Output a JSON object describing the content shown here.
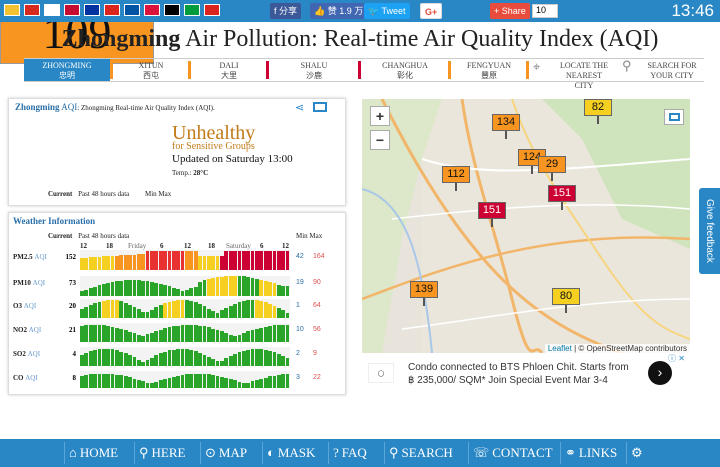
{
  "topbar": {
    "share_fb": "分享",
    "share_like": "赞 1.9 万",
    "tweet": "Tweet",
    "gplus": "G+",
    "share": "Share",
    "count": "10",
    "clock": "13:46",
    "flag_colors": [
      "#f2c230",
      "#d52b1e",
      "#ffffff",
      "#c60c30",
      "#0033a0",
      "#da251d",
      "#0055a4",
      "#dc143c",
      "#000000",
      "#009c3b",
      "#da251d"
    ]
  },
  "title": {
    "city": "Zhongming",
    "rest": " Air Pollution: Real-time Air Quality Index (AQI)"
  },
  "nav": {
    "tabs": [
      {
        "label": "Zhongming",
        "sub": "忠明",
        "sep_color": "#f79520"
      },
      {
        "label": "Xitun",
        "sub": "西屯",
        "sep_color": "#f79520"
      },
      {
        "label": "Dali",
        "sub": "大里",
        "sep_color": "#cc0033"
      },
      {
        "label": "Shalu",
        "sub": "沙鹿",
        "sep_color": "#cc0033"
      },
      {
        "label": "Changhua",
        "sub": "彰化",
        "sep_color": "#f79520"
      },
      {
        "label": "Fengyuan",
        "sub": "豐原",
        "sep_color": "#f79520"
      }
    ],
    "locate": "Locate the nearest city",
    "search": "Search for your city"
  },
  "aqi_panel": {
    "city": "Zhongming",
    "aqi_word": "AQI",
    "header_rest": ": Zhongming Real-time Air Quality Index (AQI).",
    "value": "109",
    "level": "Unhealthy",
    "level_sub": "for Sensitive Groups",
    "updated": "Updated on Saturday 13:00",
    "temp_label": "Temp.:",
    "temp_value": "28°C",
    "legend_current": "Current",
    "legend_past": "Past 48 hours data",
    "legend_minmax": "Min Max",
    "accent": "#f79520"
  },
  "weather_panel": {
    "title": "Weather Information",
    "header_current": "Current",
    "header_past": "Past 48 hours data",
    "header_minmax": "Min Max",
    "hours": [
      "12",
      "18",
      "Friday",
      "6",
      "12",
      "18",
      "Saturday",
      "6",
      "12"
    ],
    "rows": [
      {
        "name": "PM2.5",
        "unit": "AQI",
        "current": "152",
        "min": "42",
        "max": "164"
      },
      {
        "name": "PM10",
        "unit": "AQI",
        "current": "73",
        "min": "19",
        "max": "90"
      },
      {
        "name": "O3",
        "unit": "AQI",
        "current": "20",
        "min": "1",
        "max": "64"
      },
      {
        "name": "NO2",
        "unit": "AQI",
        "current": "21",
        "min": "10",
        "max": "56"
      },
      {
        "name": "SO2",
        "unit": "AQI",
        "current": "4",
        "min": "2",
        "max": "9"
      },
      {
        "name": "CO",
        "unit": "AQI",
        "current": "8",
        "min": "3",
        "max": "22"
      }
    ]
  },
  "map": {
    "zoom_in": "+",
    "zoom_out": "−",
    "markers": [
      {
        "value": "82",
        "color": "#f5d020"
      },
      {
        "value": "134",
        "color": "#f79520"
      },
      {
        "value": "124",
        "color": "#f79520"
      },
      {
        "value": "29",
        "color": "#f79520"
      },
      {
        "value": "112",
        "color": "#f79520"
      },
      {
        "value": "151",
        "color": "#cc0033"
      },
      {
        "value": "151",
        "color": "#cc0033"
      },
      {
        "value": "139",
        "color": "#f79520"
      },
      {
        "value": "80",
        "color": "#f5d020"
      }
    ],
    "attribution_leaflet": "Leaflet",
    "attribution_rest": " | © OpenStreetMap contributors"
  },
  "ad": {
    "line1": "Condo connected to BTS Phloen Chit. Starts from",
    "line2": "฿ 235,000/ SQM* Join Special Event Mar 3-4"
  },
  "feedback": "Give feedback",
  "bottom_nav": [
    {
      "label": "HOME"
    },
    {
      "label": "HERE"
    },
    {
      "label": "MAP"
    },
    {
      "label": "MASK"
    },
    {
      "label": "FAQ"
    },
    {
      "label": "SEARCH"
    },
    {
      "label": "CONTACT"
    },
    {
      "label": "LINKS"
    }
  ]
}
